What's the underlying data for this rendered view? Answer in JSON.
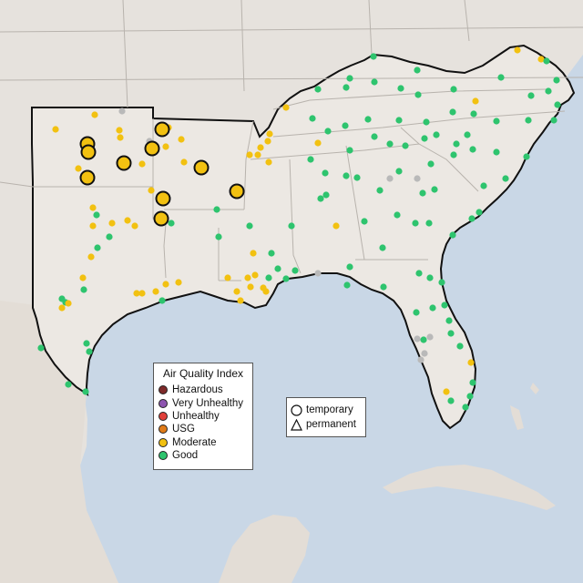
{
  "legend": {
    "title": "Air Quality Index",
    "items": [
      {
        "label": "Hazardous",
        "color": "#7e2a2a"
      },
      {
        "label": "Very Unhealthy",
        "color": "#8e55b0"
      },
      {
        "label": "Unhealthy",
        "color": "#e0403a"
      },
      {
        "label": "USG",
        "color": "#e07b18"
      },
      {
        "label": "Moderate",
        "color": "#f2c111"
      },
      {
        "label": "Good",
        "color": "#2ec46e"
      }
    ]
  },
  "type_legend": {
    "temporary": "temporary",
    "permanent": "permanent",
    "temporary_icon": "circle-icon",
    "permanent_icon": "triangle-icon"
  },
  "colors": {
    "water": "#c9d7e6",
    "land": "#ece8e3",
    "outside_land": "#e4dfd9",
    "border": "#111111",
    "state_lines": "#b8b3ad",
    "good": "#2ec46e",
    "moderate": "#f2c111",
    "no_data": "#b9b9b9"
  }
}
